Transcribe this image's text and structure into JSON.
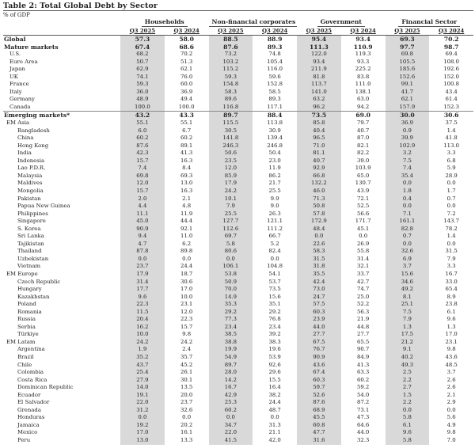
{
  "title": "Table 2: Total Global Debt by Sector",
  "unit_label": "% of GDP",
  "groups": [
    "Households",
    "Non-financial corporates",
    "Government",
    "Financial Sector"
  ],
  "years": [
    "Q3 2025",
    "Q3 2024"
  ],
  "rows": [
    {
      "label": "Global",
      "level": 0,
      "values": [
        "57.3",
        "58.0",
        "88.5",
        "88.9",
        "95.4",
        "93.4",
        "69.3",
        "70.2"
      ]
    },
    {
      "label": "Mature markets",
      "level": 0,
      "values": [
        "67.4",
        "68.6",
        "87.6",
        "89.3",
        "111.3",
        "110.9",
        "97.7",
        "98.7"
      ]
    },
    {
      "label": "U.S.",
      "level": 1,
      "values": [
        "68.2",
        "70.2",
        "73.2",
        "74.8",
        "122.0",
        "119.3",
        "69.8",
        "69.4"
      ]
    },
    {
      "label": "Euro Area",
      "level": 1,
      "values": [
        "50.7",
        "51.3",
        "103.2",
        "105.4",
        "93.4",
        "93.3",
        "105.5",
        "108.0"
      ]
    },
    {
      "label": "Japan",
      "level": 1,
      "values": [
        "62.9",
        "62.1",
        "115.2",
        "116.0",
        "211.9",
        "225.2",
        "185.6",
        "192.6"
      ]
    },
    {
      "label": "UK",
      "level": 1,
      "values": [
        "74.1",
        "76.0",
        "59.3",
        "59.6",
        "81.8",
        "83.8",
        "152.6",
        "152.0"
      ]
    },
    {
      "label": "France",
      "level": 1,
      "values": [
        "59.3",
        "60.0",
        "154.8",
        "152.8",
        "113.7",
        "111.0",
        "99.1",
        "100.8"
      ]
    },
    {
      "label": "Italy",
      "level": 1,
      "values": [
        "36.0",
        "36.9",
        "58.3",
        "58.5",
        "141.0",
        "138.1",
        "41.7",
        "43.4"
      ]
    },
    {
      "label": "Germany",
      "level": 1,
      "values": [
        "48.9",
        "49.4",
        "89.6",
        "89.3",
        "63.2",
        "63.0",
        "62.1",
        "61.4"
      ]
    },
    {
      "label": "Canada",
      "level": 1,
      "values": [
        "100.0",
        "100.0",
        "116.8",
        "117.1",
        "96.2",
        "94.2",
        "157.9",
        "152.3"
      ]
    },
    {
      "label": "Emerging markets*",
      "level": 0,
      "values": [
        "43.2",
        "43.3",
        "89.7",
        "88.4",
        "73.5",
        "69.0",
        "30.0",
        "30.6"
      ]
    },
    {
      "label": "EM Asia",
      "level": 1,
      "group": true,
      "values": [
        "55.1",
        "55.1",
        "115.5",
        "113.8",
        "85.8",
        "79.7",
        "36.9",
        "37.5"
      ]
    },
    {
      "label": "Bangladesh",
      "level": 2,
      "values": [
        "6.0",
        "6.7",
        "30.5",
        "30.9",
        "40.4",
        "40.7",
        "0.9",
        "1.4"
      ]
    },
    {
      "label": "China",
      "level": 2,
      "values": [
        "60.2",
        "60.2",
        "141.8",
        "139.4",
        "96.5",
        "87.0",
        "39.9",
        "41.8"
      ]
    },
    {
      "label": "Hong Kong",
      "level": 2,
      "values": [
        "87.6",
        "89.1",
        "246.3",
        "246.8",
        "71.0",
        "82.1",
        "102.9",
        "113.0"
      ]
    },
    {
      "label": "India",
      "level": 2,
      "values": [
        "42.3",
        "41.3",
        "50.6",
        "50.4",
        "81.1",
        "82.2",
        "3.2",
        "3.3"
      ]
    },
    {
      "label": "Indonesia",
      "level": 2,
      "values": [
        "15.7",
        "16.3",
        "23.5",
        "23.0",
        "40.7",
        "39.0",
        "7.5",
        "6.8"
      ]
    },
    {
      "label": "Lao P.D.R.",
      "level": 2,
      "values": [
        "7.4",
        "8.4",
        "12.0",
        "11.9",
        "92.9",
        "103.9",
        "7.4",
        "5.9"
      ]
    },
    {
      "label": "Malaysia",
      "level": 2,
      "values": [
        "69.8",
        "69.3",
        "85.9",
        "86.2",
        "66.8",
        "65.0",
        "35.4",
        "28.9"
      ]
    },
    {
      "label": "Maldives",
      "level": 2,
      "values": [
        "12.0",
        "13.0",
        "17.9",
        "21.7",
        "132.2",
        "130.7",
        "0.0",
        "0.0"
      ]
    },
    {
      "label": "Mongolia",
      "level": 2,
      "values": [
        "15.7",
        "16.3",
        "24.2",
        "25.5",
        "46.0",
        "43.9",
        "1.8",
        "1.7"
      ]
    },
    {
      "label": "Pakistan",
      "level": 2,
      "values": [
        "2.0",
        "2.1",
        "10.1",
        "9.9",
        "71.3",
        "72.1",
        "0.4",
        "0.7"
      ]
    },
    {
      "label": "Papua New Guinea",
      "level": 2,
      "values": [
        "4.4",
        "4.8",
        "7.9",
        "9.0",
        "50.8",
        "52.5",
        "0.0",
        "0.0"
      ]
    },
    {
      "label": "Philippines",
      "level": 2,
      "values": [
        "11.1",
        "11.9",
        "25.5",
        "26.3",
        "57.8",
        "56.6",
        "7.1",
        "7.2"
      ]
    },
    {
      "label": "Singapore",
      "level": 2,
      "values": [
        "45.0",
        "44.4",
        "127.7",
        "121.1",
        "172.9",
        "171.7",
        "161.1",
        "143.7"
      ]
    },
    {
      "label": "S. Korea",
      "level": 2,
      "values": [
        "90.9",
        "92.1",
        "112.6",
        "111.2",
        "48.4",
        "45.1",
        "82.8",
        "78.2"
      ]
    },
    {
      "label": "Sri Lanka",
      "level": 2,
      "values": [
        "9.4",
        "11.0",
        "69.7",
        "66.7",
        "0.0",
        "0.0",
        "0.7",
        "1.4"
      ]
    },
    {
      "label": "Tajikistan",
      "level": 2,
      "values": [
        "4.7",
        "6.2",
        "5.8",
        "5.2",
        "22.6",
        "26.9",
        "0.0",
        "0.0"
      ]
    },
    {
      "label": "Thailand",
      "level": 2,
      "values": [
        "87.8",
        "89.8",
        "80.6",
        "82.4",
        "58.3",
        "55.8",
        "32.6",
        "31.5"
      ]
    },
    {
      "label": "Uzbekistan",
      "level": 2,
      "values": [
        "0.0",
        "0.0",
        "0.0",
        "0.0",
        "31.5",
        "31.4",
        "6.9",
        "7.9"
      ]
    },
    {
      "label": "Vietnam",
      "level": 2,
      "values": [
        "23.7",
        "24.4",
        "106.1",
        "104.8",
        "31.8",
        "32.1",
        "3.7",
        "3.3"
      ]
    },
    {
      "label": "EM Europe",
      "level": 1,
      "group": true,
      "values": [
        "17.9",
        "18.7",
        "53.8",
        "54.1",
        "35.5",
        "33.7",
        "15.6",
        "16.7"
      ]
    },
    {
      "label": "Czech Republic",
      "level": 2,
      "values": [
        "31.4",
        "30.6",
        "50.9",
        "53.7",
        "42.4",
        "42.7",
        "34.6",
        "33.0"
      ]
    },
    {
      "label": "Hungary",
      "level": 2,
      "values": [
        "17.7",
        "17.0",
        "70.0",
        "73.5",
        "73.0",
        "74.7",
        "49.2",
        "65.4"
      ]
    },
    {
      "label": "Kazakhstan",
      "level": 2,
      "values": [
        "9.6",
        "10.0",
        "14.9",
        "15.6",
        "24.7",
        "25.0",
        "8.1",
        "8.9"
      ]
    },
    {
      "label": "Poland",
      "level": 2,
      "values": [
        "22.3",
        "23.1",
        "35.3",
        "35.1",
        "57.5",
        "52.2",
        "25.1",
        "23.8"
      ]
    },
    {
      "label": "Romania",
      "level": 2,
      "values": [
        "11.5",
        "12.0",
        "29.2",
        "29.2",
        "60.3",
        "56.3",
        "7.5",
        "6.1"
      ]
    },
    {
      "label": "Russia",
      "level": 2,
      "values": [
        "20.4",
        "22.3",
        "77.3",
        "76.8",
        "23.9",
        "21.9",
        "7.9",
        "9.6"
      ]
    },
    {
      "label": "Serbia",
      "level": 2,
      "values": [
        "16.2",
        "15.7",
        "23.4",
        "23.4",
        "44.0",
        "44.8",
        "1.3",
        "1.3"
      ]
    },
    {
      "label": "Türkiye",
      "level": 2,
      "values": [
        "10.0",
        "9.8",
        "38.5",
        "39.2",
        "27.7",
        "27.7",
        "17.5",
        "17.0"
      ]
    },
    {
      "label": "EM Latam",
      "level": 1,
      "group": true,
      "values": [
        "24.2",
        "24.2",
        "38.8",
        "38.3",
        "67.5",
        "65.5",
        "21.2",
        "23.1"
      ]
    },
    {
      "label": "Argentina",
      "level": 2,
      "values": [
        "1.9",
        "2.4",
        "19.9",
        "19.6",
        "76.7",
        "90.7",
        "9.1",
        "9.8"
      ]
    },
    {
      "label": "Brazil",
      "level": 2,
      "values": [
        "35.2",
        "35.7",
        "54.9",
        "53.9",
        "90.9",
        "84.9",
        "40.2",
        "43.6"
      ]
    },
    {
      "label": "Chile",
      "level": 2,
      "values": [
        "43.7",
        "45.2",
        "89.7",
        "92.6",
        "43.6",
        "41.3",
        "49.3",
        "48.5"
      ]
    },
    {
      "label": "Colombia",
      "level": 2,
      "values": [
        "25.4",
        "26.1",
        "28.0",
        "29.6",
        "67.4",
        "63.3",
        "2.5",
        "3.7"
      ]
    },
    {
      "label": "Costa Rica",
      "level": 2,
      "values": [
        "27.9",
        "30.1",
        "14.2",
        "15.5",
        "60.3",
        "60.2",
        "2.2",
        "2.6"
      ]
    },
    {
      "label": "Dominican Republic",
      "level": 2,
      "values": [
        "14.0",
        "13.5",
        "16.7",
        "16.4",
        "59.7",
        "59.2",
        "2.7",
        "2.6"
      ]
    },
    {
      "label": "Ecuador",
      "level": 2,
      "values": [
        "19.1",
        "20.0",
        "42.9",
        "38.2",
        "52.6",
        "54.0",
        "1.5",
        "2.1"
      ]
    },
    {
      "label": "El Salvador",
      "level": 2,
      "values": [
        "22.0",
        "23.7",
        "25.3",
        "24.4",
        "87.6",
        "87.2",
        "2.2",
        "2.9"
      ]
    },
    {
      "label": "Grenada",
      "level": 2,
      "values": [
        "31.2",
        "32.6",
        "60.2",
        "48.7",
        "68.9",
        "73.1",
        "0.0",
        "0.0"
      ]
    },
    {
      "label": "Honduras",
      "level": 2,
      "values": [
        "0.0",
        "0.0",
        "0.0",
        "0.0",
        "45.5",
        "47.3",
        "5.8",
        "5.6"
      ]
    },
    {
      "label": "Jamaica",
      "level": 2,
      "values": [
        "19.2",
        "20.2",
        "34.7",
        "31.3",
        "60.8",
        "64.6",
        "6.1",
        "4.9"
      ]
    },
    {
      "label": "Mexico",
      "level": 2,
      "values": [
        "17.0",
        "16.1",
        "22.0",
        "21.1",
        "47.7",
        "44.0",
        "9.6",
        "9.8"
      ]
    },
    {
      "label": "Peru",
      "level": 2,
      "values": [
        "13.0",
        "13.3",
        "41.5",
        "42.0",
        "31.6",
        "32.3",
        "5.8",
        "7.0"
      ]
    }
  ]
}
